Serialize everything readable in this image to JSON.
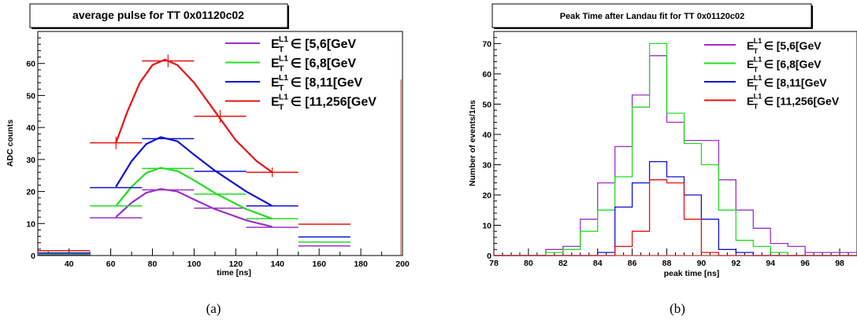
{
  "chart_data": [
    {
      "type": "line",
      "title": "average pulse for TT  0x01120c02",
      "xlabel": "time [ns]",
      "ylabel": "ADC counts",
      "xlim": [
        25,
        200
      ],
      "ylim": [
        0,
        70
      ],
      "xticks": [
        40,
        60,
        80,
        100,
        120,
        140,
        160,
        180,
        200
      ],
      "yticks": [
        0,
        10,
        20,
        30,
        40,
        50,
        60
      ],
      "caption": "(a)",
      "legend": {
        "position": "top-right",
        "entries": [
          {
            "text": "∈ [5,6[GeV",
            "color": "#9b30c8"
          },
          {
            "text": "∈ [6,8[GeV",
            "color": "#22dd22"
          },
          {
            "text": "∈ [8,11[GeV",
            "color": "#1010d8"
          },
          {
            "text": "∈ [11,256[GeV",
            "color": "#e81010"
          }
        ]
      },
      "series": [
        {
          "color": "#9b30c8",
          "points": [
            {
              "x": 37.5,
              "y": 0.3
            },
            {
              "x": 62.5,
              "y": 11.8
            },
            {
              "x": 87.5,
              "y": 20.5
            },
            {
              "x": 112.5,
              "y": 14.8
            },
            {
              "x": 137.5,
              "y": 8.8
            },
            {
              "x": 162.5,
              "y": 3.0
            }
          ],
          "fit": [
            [
              62.5,
              12
            ],
            [
              70,
              16.5
            ],
            [
              77,
              19.6
            ],
            [
              84,
              20.8
            ],
            [
              92,
              20
            ],
            [
              100,
              17.5
            ],
            [
              110,
              14.5
            ],
            [
              125,
              11
            ],
            [
              137.5,
              9
            ]
          ]
        },
        {
          "color": "#22dd22",
          "points": [
            {
              "x": 37.5,
              "y": 0.5
            },
            {
              "x": 62.5,
              "y": 15.5
            },
            {
              "x": 87.5,
              "y": 27.2
            },
            {
              "x": 112.5,
              "y": 19.2
            },
            {
              "x": 137.5,
              "y": 11.5
            },
            {
              "x": 162.5,
              "y": 4.2
            }
          ],
          "fit": [
            [
              62.5,
              15.5
            ],
            [
              70,
              21.5
            ],
            [
              77,
              25.8
            ],
            [
              84,
              27.4
            ],
            [
              92,
              26.4
            ],
            [
              100,
              23.5
            ],
            [
              110,
              19.5
            ],
            [
              125,
              14.5
            ],
            [
              137.5,
              11.5
            ]
          ]
        },
        {
          "color": "#1010d8",
          "points": [
            {
              "x": 37.5,
              "y": 0.8
            },
            {
              "x": 62.5,
              "y": 21.2
            },
            {
              "x": 87.5,
              "y": 36.5
            },
            {
              "x": 112.5,
              "y": 26.3
            },
            {
              "x": 137.5,
              "y": 15.5
            },
            {
              "x": 162.5,
              "y": 5.8
            }
          ],
          "fit": [
            [
              62.5,
              21.5
            ],
            [
              70,
              29.5
            ],
            [
              77,
              34.8
            ],
            [
              84,
              37
            ],
            [
              92,
              35.7
            ],
            [
              100,
              31.5
            ],
            [
              110,
              26.5
            ],
            [
              125,
              20
            ],
            [
              137.5,
              15.5
            ]
          ]
        },
        {
          "color": "#e81010",
          "points": [
            {
              "x": 37.5,
              "y": 1.5
            },
            {
              "x": 62.5,
              "y": 35.2
            },
            {
              "x": 87.5,
              "y": 60.8
            },
            {
              "x": 112.5,
              "y": 43.5
            },
            {
              "x": 137.5,
              "y": 26.0
            },
            {
              "x": 162.5,
              "y": 9.8
            }
          ],
          "fit": [
            [
              62.5,
              35.2
            ],
            [
              68,
              45
            ],
            [
              74,
              54
            ],
            [
              80,
              59.5
            ],
            [
              86,
              61.2
            ],
            [
              92,
              59.5
            ],
            [
              100,
              54
            ],
            [
              110,
              45
            ],
            [
              120,
              36
            ],
            [
              130,
              29.5
            ],
            [
              137.5,
              26
            ]
          ]
        }
      ]
    },
    {
      "type": "histogram",
      "title": "Peak Time after Landau fit for TT  0x01120c02",
      "xlabel": "peak time [ns]",
      "ylabel": "Number of events/1ns",
      "xlim": [
        78,
        99
      ],
      "ylim": [
        0,
        74
      ],
      "xticks": [
        78,
        80,
        82,
        84,
        86,
        88,
        90,
        92,
        94,
        96,
        98
      ],
      "yticks": [
        0,
        10,
        20,
        30,
        40,
        50,
        60,
        70
      ],
      "bin_edges": [
        78,
        79,
        80,
        81,
        82,
        83,
        84,
        85,
        86,
        87,
        88,
        89,
        90,
        91,
        92,
        93,
        94,
        95,
        96,
        97,
        98,
        99
      ],
      "caption": "(b)",
      "legend": {
        "position": "top-right",
        "entries": [
          {
            "text": "∈ [5,6[GeV",
            "color": "#9b30c8"
          },
          {
            "text": "∈ [6,8[GeV",
            "color": "#22dd22"
          },
          {
            "text": "∈ [8,11[GeV",
            "color": "#1010d8"
          },
          {
            "text": "∈ [11,256[GeV",
            "color": "#e81010"
          }
        ]
      },
      "series": [
        {
          "color": "#9b30c8",
          "counts": [
            0,
            0,
            0,
            2,
            3,
            12,
            24,
            36,
            53,
            66,
            44,
            38,
            38,
            25,
            15,
            9,
            4,
            3,
            1,
            1,
            1
          ]
        },
        {
          "color": "#22dd22",
          "counts": [
            0,
            0,
            0,
            1,
            2,
            8,
            15,
            26,
            49,
            70,
            47,
            37,
            30,
            15,
            5,
            3,
            1,
            0,
            0,
            0,
            0
          ]
        },
        {
          "color": "#1010d8",
          "counts": [
            0,
            0,
            0,
            0,
            0,
            0,
            1,
            16,
            24,
            31,
            26,
            20,
            12,
            2,
            1,
            0,
            0,
            0,
            0,
            0,
            0
          ]
        },
        {
          "color": "#e81010",
          "counts": [
            0,
            0,
            0,
            0,
            0,
            0,
            0,
            3,
            8,
            25,
            24,
            12,
            1,
            0,
            0,
            0,
            0,
            0,
            0,
            0,
            0
          ]
        }
      ]
    }
  ]
}
